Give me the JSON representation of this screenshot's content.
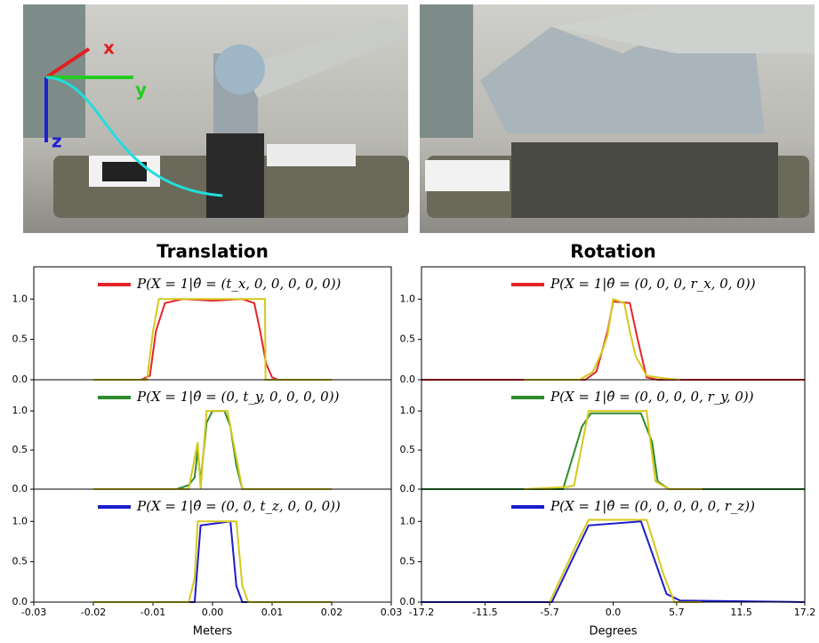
{
  "photo_axes": [
    "x",
    "y",
    "z"
  ],
  "chart_data": [
    {
      "type": "line",
      "title": "Translation",
      "xlim": [
        -0.03,
        0.03
      ],
      "ylim": [
        0,
        1.4
      ],
      "yticks": [
        {
          "value": 0,
          "label": "0.0"
        },
        0.5,
        {
          "value": 1,
          "label": "1.0"
        }
      ],
      "series": [
        {
          "name": "P(X = 1|θ̂ = (t_x, 0, 0, 0, 0, 0))",
          "color": "#e3242b",
          "x": [
            -0.02,
            -0.012,
            -0.0105,
            -0.0095,
            -0.008,
            -0.005,
            0,
            0.005,
            0.007,
            0.008,
            0.009,
            0.01,
            0.011,
            0.02
          ],
          "values": [
            0,
            0,
            0.05,
            0.6,
            0.95,
            1.0,
            0.98,
            1.0,
            0.95,
            0.6,
            0.2,
            0.03,
            0,
            0
          ]
        },
        {
          "color": "#d6c81c",
          "x": [
            -0.02,
            -0.011,
            -0.01,
            -0.009,
            0.006,
            0.0088,
            0.0089,
            0.02
          ],
          "values": [
            0,
            0,
            0.6,
            1.0,
            1.0,
            1.0,
            0,
            0
          ]
        }
      ]
    },
    {
      "type": "line",
      "xlim": [
        -0.03,
        0.03
      ],
      "ylim": [
        0,
        1.4
      ],
      "yticks": [
        {
          "value": 0,
          "label": "0.0"
        },
        0.5,
        {
          "value": 1,
          "label": "1.0"
        }
      ],
      "series": [
        {
          "name": "P(X = 1|θ̂ = (0, t_y, 0, 0, 0, 0))",
          "color": "#2e8b2e",
          "x": [
            -0.02,
            -0.006,
            -0.004,
            -0.003,
            -0.0025,
            -0.002,
            -0.001,
            0,
            0.002,
            0.003,
            0.004,
            0.005,
            0.02
          ],
          "values": [
            0,
            0,
            0.05,
            0.15,
            0.5,
            0.1,
            0.85,
            1.0,
            1.0,
            0.8,
            0.3,
            0,
            0
          ]
        },
        {
          "color": "#d6c81c",
          "x": [
            -0.02,
            -0.004,
            -0.003,
            -0.0025,
            -0.002,
            -0.001,
            0.002,
            0.0025,
            0.004,
            0.005,
            0.02
          ],
          "values": [
            0,
            0,
            0.4,
            0.6,
            0,
            1.0,
            1.0,
            1.0,
            0.4,
            0,
            0
          ]
        }
      ]
    },
    {
      "type": "line",
      "xlabel": "Meters",
      "xlim": [
        -0.03,
        0.03
      ],
      "ylim": [
        0,
        1.4
      ],
      "xticks": [
        -0.03,
        -0.02,
        -0.01,
        {
          "value": 0,
          "label": "0.00"
        },
        0.01,
        0.02,
        0.03
      ],
      "yticks": [
        {
          "value": 0,
          "label": "0.0"
        },
        0.5,
        {
          "value": 1,
          "label": "1.0"
        }
      ],
      "series": [
        {
          "name": "P(X = 1|θ̂ = (0, 0, t_z, 0, 0, 0))",
          "color": "#1c1ccc",
          "x": [
            -0.02,
            -0.003,
            -0.002,
            0.003,
            0.004,
            0.005,
            0.02
          ],
          "values": [
            0,
            0,
            0.95,
            1.0,
            0.2,
            0,
            0
          ]
        },
        {
          "color": "#d6c81c",
          "x": [
            -0.02,
            -0.004,
            -0.003,
            -0.0025,
            0.004,
            0.005,
            0.006,
            0.02
          ],
          "values": [
            0,
            0,
            0.3,
            1.0,
            1.0,
            0.2,
            0,
            0
          ]
        }
      ]
    },
    {
      "type": "line",
      "title": "Rotation",
      "xlim": [
        -17.2,
        17.2
      ],
      "ylim": [
        0,
        1.4
      ],
      "yticks": [
        {
          "value": 0,
          "label": "0.0"
        },
        0.5,
        {
          "value": 1,
          "label": "1.0"
        }
      ],
      "series": [
        {
          "name": "P(X = 1|θ̂ = (0, 0, 0, r_x, 0, 0))",
          "color": "#e3242b",
          "x": [
            -17.2,
            -2.5,
            -1.5,
            -0.5,
            0,
            1.5,
            2.2,
            3,
            4,
            17.2
          ],
          "values": [
            0,
            0,
            0.1,
            0.6,
            0.97,
            0.95,
            0.5,
            0.03,
            0,
            0
          ]
        },
        {
          "color": "#d6c81c",
          "x": [
            -8,
            -3,
            -1.8,
            -1,
            -0.5,
            0,
            1,
            1.5,
            2,
            3,
            4.5,
            6
          ],
          "values": [
            0,
            0,
            0.1,
            0.35,
            0.55,
            1.0,
            0.95,
            0.6,
            0.3,
            0.05,
            0.02,
            0
          ]
        }
      ]
    },
    {
      "type": "line",
      "xlim": [
        -17.2,
        17.2
      ],
      "ylim": [
        0,
        1.4
      ],
      "yticks": [
        {
          "value": 0,
          "label": "0.0"
        },
        0.5,
        {
          "value": 1,
          "label": "1.0"
        }
      ],
      "series": [
        {
          "name": "P(X = 1|θ̂ = (0, 0, 0, 0, r_y, 0))",
          "color": "#2e8b2e",
          "x": [
            -17.2,
            -4.5,
            -2.8,
            -2,
            2.5,
            3.5,
            4,
            5,
            17.2
          ],
          "values": [
            0,
            0,
            0.8,
            0.97,
            0.97,
            0.6,
            0.1,
            0,
            0
          ]
        },
        {
          "color": "#d6c81c",
          "x": [
            -8,
            -4,
            -3.5,
            -2.2,
            3,
            3.8,
            5,
            8
          ],
          "values": [
            0,
            0.03,
            0.05,
            1.0,
            1.0,
            0.1,
            0,
            0
          ]
        }
      ]
    },
    {
      "type": "line",
      "xlabel": "Degrees",
      "xlim": [
        -17.2,
        17.2
      ],
      "ylim": [
        0,
        1.4
      ],
      "xticks": [
        -17.2,
        -11.5,
        -5.7,
        {
          "value": 0,
          "label": "0.0"
        },
        5.7,
        11.5,
        17.2
      ],
      "yticks": [
        {
          "value": 0,
          "label": "0.0"
        },
        0.5,
        {
          "value": 1,
          "label": "1.0"
        }
      ],
      "series": [
        {
          "name": "P(X = 1|θ̂ = (0, 0, 0, 0, 0, r_z))",
          "color": "#1c1ccc",
          "x": [
            -17.2,
            -5.5,
            -2.2,
            2.5,
            4.8,
            6,
            17.2
          ],
          "values": [
            0,
            0,
            0.95,
            1.0,
            0.1,
            0.02,
            0
          ]
        },
        {
          "color": "#d6c81c",
          "x": [
            -5.7,
            -3,
            -2.2,
            3,
            3.5,
            4.5,
            5.5,
            8
          ],
          "values": [
            0,
            0.8,
            1.02,
            1.02,
            0.8,
            0.35,
            0,
            0
          ]
        }
      ]
    }
  ]
}
